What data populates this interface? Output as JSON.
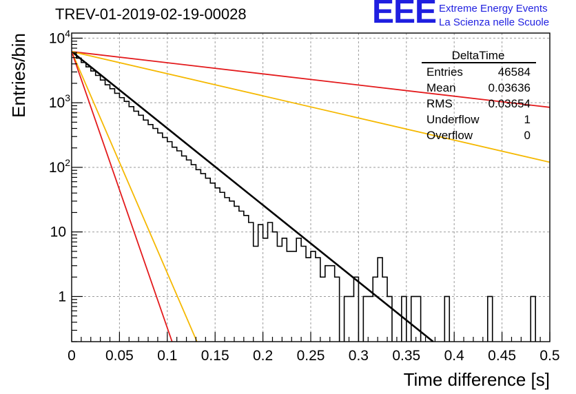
{
  "title": "TREV-01-2019-02-19-00028",
  "logo": {
    "mark": "EEE",
    "line1": "Extreme Energy Events",
    "line2": "La Scienza nelle Scuole",
    "color": "#1f1fe0"
  },
  "chart_data": {
    "type": "histogram",
    "title": "TREV-01-2019-02-19-00028",
    "xlabel": "Time difference [s]",
    "ylabel": "Entries/bin",
    "xlim": [
      0,
      0.5
    ],
    "ylim": [
      0.2,
      12000
    ],
    "yscale": "log",
    "grid": true,
    "x_ticks": [
      "0",
      "0.05",
      "0.1",
      "0.15",
      "0.2",
      "0.25",
      "0.3",
      "0.35",
      "0.4",
      "0.45",
      "0.5"
    ],
    "y_ticks": [
      {
        "value": 1,
        "label": "1"
      },
      {
        "value": 10,
        "label": "10"
      },
      {
        "value": 100,
        "label": "10^2"
      },
      {
        "value": 1000,
        "label": "10^3"
      },
      {
        "value": 10000,
        "label": "10^4"
      }
    ],
    "bin_width": 0.005,
    "histogram": {
      "name": "DeltaTime",
      "color": "#000000",
      "values": [
        5800,
        4900,
        4200,
        3600,
        3100,
        2650,
        2250,
        1900,
        1650,
        1400,
        1200,
        1050,
        870,
        740,
        640,
        540,
        460,
        400,
        340,
        290,
        250,
        205,
        180,
        150,
        130,
        110,
        92,
        80,
        68,
        57,
        48,
        41,
        34,
        30,
        25,
        21,
        18,
        14,
        6,
        13,
        8,
        14,
        10,
        6,
        8,
        5,
        5,
        8,
        6,
        4,
        5,
        4,
        2,
        3,
        3,
        2,
        0.1,
        1,
        1,
        2,
        0.1,
        1,
        1,
        2,
        4,
        2,
        1,
        0.1,
        0.1,
        1,
        0.1,
        1,
        1,
        0.1,
        0.1,
        0.1,
        0.1,
        0.1,
        1,
        0.1,
        0.1,
        0.1,
        0.1,
        0.1,
        0.1,
        0.1,
        0.1,
        1,
        0.1,
        0.1,
        0.1,
        0.1,
        0.1,
        0.1,
        0.1,
        0.1,
        1,
        0.1,
        0.1,
        0.1
      ]
    },
    "curves": [
      {
        "color": "#000000",
        "width": 2.6,
        "from": [
          0,
          6200
        ],
        "to": [
          0.378,
          0.2
        ]
      },
      {
        "color": "#e31a1c",
        "width": 1.8,
        "from": [
          0,
          6200
        ],
        "to": [
          0.5,
          850
        ]
      },
      {
        "color": "#f5b800",
        "width": 1.8,
        "from": [
          0,
          6200
        ],
        "to": [
          0.5,
          120
        ]
      },
      {
        "color": "#f5b800",
        "width": 1.8,
        "from": [
          0,
          6200
        ],
        "to": [
          0.131,
          0.2
        ]
      },
      {
        "color": "#e31a1c",
        "width": 1.8,
        "from": [
          0,
          6200
        ],
        "to": [
          0.105,
          0.2
        ]
      }
    ],
    "stats": {
      "name": "DeltaTime",
      "rows": [
        {
          "label": "Entries",
          "value": "46584"
        },
        {
          "label": "Mean",
          "value": "0.03636"
        },
        {
          "label": "RMS",
          "value": "0.03654"
        },
        {
          "label": "Underflow",
          "value": "1"
        },
        {
          "label": "Overflow",
          "value": "0"
        }
      ]
    }
  }
}
